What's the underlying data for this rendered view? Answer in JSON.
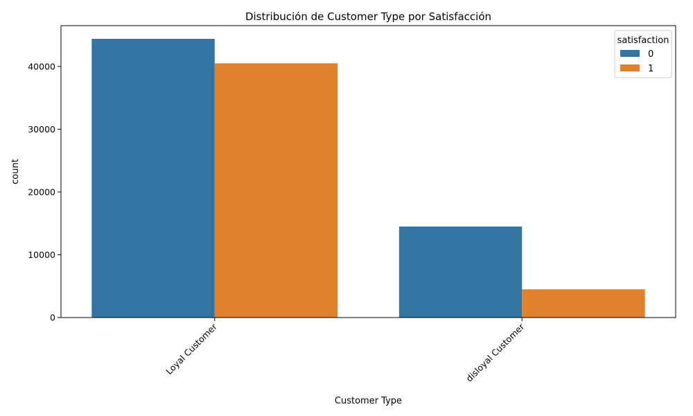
{
  "chart_data": {
    "type": "bar",
    "title": "Distribución de Customer Type por Satisfacción",
    "xlabel": "Customer Type",
    "ylabel": "count",
    "categories": [
      "Loyal Customer",
      "disloyal Customer"
    ],
    "series": [
      {
        "name": "0",
        "values": [
          44400,
          14500
        ],
        "color": "#3274a1"
      },
      {
        "name": "1",
        "values": [
          40500,
          4500
        ],
        "color": "#e1812c"
      }
    ],
    "ylim": [
      0,
      46500
    ],
    "yticks": [
      0,
      10000,
      20000,
      30000,
      40000
    ],
    "ytick_labels": [
      "0",
      "10000",
      "20000",
      "30000",
      "40000"
    ],
    "legend": {
      "title": "satisfaction",
      "position": "top-right"
    },
    "grid": false
  }
}
